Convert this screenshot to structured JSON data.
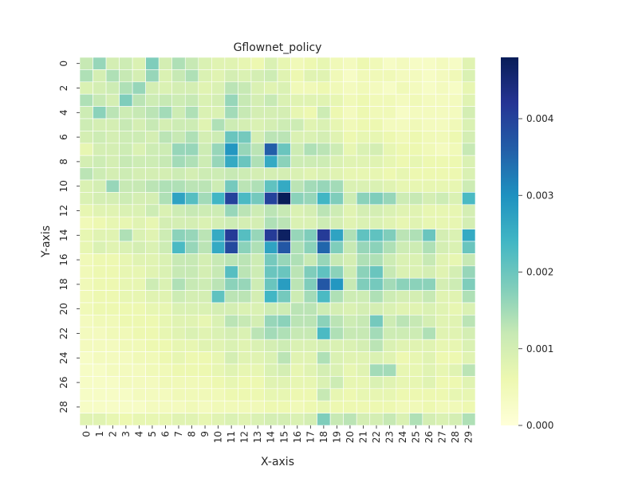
{
  "chart_data": {
    "type": "heatmap",
    "title": "Gflownet_policy",
    "xlabel": "X-axis",
    "ylabel": "Y-axis",
    "x_tick_labels": [
      "0",
      "1",
      "2",
      "3",
      "4",
      "5",
      "6",
      "7",
      "8",
      "9",
      "10",
      "11",
      "12",
      "13",
      "14",
      "15",
      "16",
      "17",
      "18",
      "19",
      "20",
      "21",
      "22",
      "23",
      "24",
      "25",
      "26",
      "27",
      "28",
      "29"
    ],
    "y_tick_labels": [
      "0",
      "2",
      "4",
      "6",
      "8",
      "10",
      "12",
      "14",
      "16",
      "18",
      "20",
      "22",
      "24",
      "26",
      "28"
    ],
    "colormap": "YlGnBu",
    "value_range": [
      0,
      0.0048
    ],
    "colorbar_ticks": [
      {
        "value": 0.0,
        "label": "0.000"
      },
      {
        "value": 0.001,
        "label": "0.001"
      },
      {
        "value": 0.002,
        "label": "0.002"
      },
      {
        "value": 0.003,
        "label": "0.003"
      },
      {
        "value": 0.004,
        "label": "0.004"
      }
    ],
    "grid": "white cell borders",
    "values": [
      [
        0.0012,
        0.0016,
        0.001,
        0.0011,
        0.0009,
        0.0018,
        0.001,
        0.0014,
        0.0012,
        0.0009,
        0.0008,
        0.0008,
        0.0007,
        0.0006,
        0.0009,
        0.0007,
        0.0005,
        0.0006,
        0.0007,
        0.0005,
        0.0004,
        0.0006,
        0.0005,
        0.0003,
        0.0004,
        0.0003,
        0.0003,
        0.0004,
        0.0003,
        0.0008
      ],
      [
        0.0014,
        0.001,
        0.0014,
        0.0012,
        0.001,
        0.0016,
        0.0009,
        0.0012,
        0.0014,
        0.0009,
        0.0008,
        0.001,
        0.0009,
        0.001,
        0.0011,
        0.0008,
        0.0006,
        0.0008,
        0.0008,
        0.0005,
        0.0003,
        0.0005,
        0.0005,
        0.0005,
        0.0004,
        0.0004,
        0.0003,
        0.0004,
        0.0005,
        0.0009
      ],
      [
        0.0009,
        0.001,
        0.0011,
        0.0014,
        0.0016,
        0.001,
        0.0009,
        0.001,
        0.001,
        0.0008,
        0.0009,
        0.0013,
        0.0012,
        0.0009,
        0.0008,
        0.0009,
        0.0005,
        0.0005,
        0.0006,
        0.0005,
        0.0004,
        0.0005,
        0.0004,
        0.0003,
        0.0005,
        0.0004,
        0.0003,
        0.0004,
        0.0003,
        0.0007
      ],
      [
        0.0014,
        0.0012,
        0.001,
        0.0018,
        0.0013,
        0.0011,
        0.0012,
        0.0011,
        0.0012,
        0.0009,
        0.001,
        0.0016,
        0.0012,
        0.001,
        0.0012,
        0.0009,
        0.0008,
        0.0008,
        0.0008,
        0.0007,
        0.0005,
        0.0006,
        0.0005,
        0.0005,
        0.0004,
        0.0005,
        0.0004,
        0.0004,
        0.0004,
        0.0008
      ],
      [
        0.0011,
        0.0017,
        0.0013,
        0.0011,
        0.0012,
        0.0013,
        0.0015,
        0.0011,
        0.0014,
        0.0009,
        0.0009,
        0.0015,
        0.0012,
        0.001,
        0.001,
        0.001,
        0.0007,
        0.0006,
        0.0011,
        0.0006,
        0.0004,
        0.0006,
        0.0005,
        0.0005,
        0.0003,
        0.0004,
        0.0004,
        0.0004,
        0.0004,
        0.001
      ],
      [
        0.0011,
        0.001,
        0.001,
        0.0012,
        0.001,
        0.0012,
        0.001,
        0.0011,
        0.0011,
        0.0008,
        0.0014,
        0.0011,
        0.001,
        0.0009,
        0.001,
        0.0011,
        0.0011,
        0.0008,
        0.0009,
        0.0007,
        0.0005,
        0.0006,
        0.0006,
        0.0004,
        0.0004,
        0.0005,
        0.0004,
        0.0004,
        0.0005,
        0.0009
      ],
      [
        0.001,
        0.0011,
        0.001,
        0.0011,
        0.0011,
        0.001,
        0.0013,
        0.0012,
        0.0014,
        0.001,
        0.0011,
        0.002,
        0.0019,
        0.001,
        0.0013,
        0.0013,
        0.0009,
        0.0009,
        0.001,
        0.0008,
        0.0006,
        0.0007,
        0.0007,
        0.0006,
        0.0005,
        0.0006,
        0.0005,
        0.0005,
        0.0006,
        0.001
      ],
      [
        0.0007,
        0.001,
        0.001,
        0.0011,
        0.0009,
        0.0011,
        0.0011,
        0.0016,
        0.0016,
        0.0011,
        0.0016,
        0.0029,
        0.0016,
        0.0013,
        0.0036,
        0.002,
        0.0011,
        0.0014,
        0.0013,
        0.0011,
        0.0007,
        0.0009,
        0.001,
        0.0007,
        0.0006,
        0.0006,
        0.0005,
        0.0004,
        0.0005,
        0.0012
      ],
      [
        0.001,
        0.0011,
        0.001,
        0.0012,
        0.0011,
        0.0011,
        0.0012,
        0.0015,
        0.0014,
        0.0011,
        0.0016,
        0.0026,
        0.002,
        0.0014,
        0.0026,
        0.0017,
        0.0011,
        0.0011,
        0.0011,
        0.0009,
        0.0008,
        0.0008,
        0.0008,
        0.0007,
        0.0006,
        0.0007,
        0.0006,
        0.0006,
        0.0006,
        0.0009
      ],
      [
        0.0013,
        0.0011,
        0.001,
        0.0011,
        0.001,
        0.001,
        0.001,
        0.0011,
        0.001,
        0.0011,
        0.0011,
        0.0012,
        0.0011,
        0.001,
        0.001,
        0.001,
        0.0009,
        0.0008,
        0.0009,
        0.0008,
        0.0007,
        0.0007,
        0.0007,
        0.0006,
        0.0007,
        0.0006,
        0.0006,
        0.0006,
        0.0006,
        0.0009
      ],
      [
        0.0009,
        0.001,
        0.0016,
        0.0012,
        0.0012,
        0.0013,
        0.0014,
        0.0014,
        0.0013,
        0.0013,
        0.0011,
        0.0019,
        0.0013,
        0.0014,
        0.0021,
        0.0026,
        0.0013,
        0.0015,
        0.0016,
        0.0015,
        0.0009,
        0.0009,
        0.0009,
        0.0008,
        0.0007,
        0.0007,
        0.0007,
        0.0007,
        0.0007,
        0.0011
      ],
      [
        0.0009,
        0.001,
        0.001,
        0.0011,
        0.001,
        0.001,
        0.0014,
        0.0027,
        0.0022,
        0.0015,
        0.0024,
        0.004,
        0.0023,
        0.0019,
        0.004,
        0.0048,
        0.0017,
        0.0016,
        0.0024,
        0.0018,
        0.0011,
        0.0017,
        0.0018,
        0.0016,
        0.0011,
        0.0012,
        0.001,
        0.0011,
        0.0009,
        0.0023
      ],
      [
        0.0007,
        0.0008,
        0.0008,
        0.0009,
        0.0009,
        0.0011,
        0.0009,
        0.0011,
        0.0012,
        0.0011,
        0.0011,
        0.0016,
        0.0013,
        0.0011,
        0.0013,
        0.0012,
        0.0009,
        0.001,
        0.0013,
        0.0011,
        0.0008,
        0.001,
        0.001,
        0.0009,
        0.0008,
        0.0008,
        0.0007,
        0.0007,
        0.0007,
        0.001
      ],
      [
        0.0005,
        0.0006,
        0.0007,
        0.0007,
        0.0008,
        0.0007,
        0.001,
        0.001,
        0.001,
        0.0009,
        0.001,
        0.0011,
        0.001,
        0.001,
        0.0014,
        0.0013,
        0.0009,
        0.0009,
        0.0011,
        0.001,
        0.0008,
        0.0009,
        0.0009,
        0.0008,
        0.0007,
        0.0008,
        0.0007,
        0.0007,
        0.0007,
        0.001
      ],
      [
        0.0007,
        0.0008,
        0.0008,
        0.0014,
        0.0009,
        0.0008,
        0.0011,
        0.0017,
        0.0016,
        0.0013,
        0.0026,
        0.0041,
        0.0022,
        0.0016,
        0.0041,
        0.0047,
        0.0016,
        0.0018,
        0.0041,
        0.0027,
        0.0014,
        0.0021,
        0.0021,
        0.0018,
        0.0013,
        0.0014,
        0.002,
        0.001,
        0.0009,
        0.0026
      ],
      [
        0.0007,
        0.0009,
        0.0008,
        0.0009,
        0.001,
        0.0009,
        0.0011,
        0.0023,
        0.0016,
        0.0013,
        0.0026,
        0.0039,
        0.0017,
        0.0014,
        0.0027,
        0.0037,
        0.0014,
        0.0017,
        0.0035,
        0.0018,
        0.0012,
        0.0016,
        0.0017,
        0.0014,
        0.0011,
        0.0011,
        0.0014,
        0.001,
        0.0009,
        0.002
      ],
      [
        0.0005,
        0.0006,
        0.0006,
        0.0007,
        0.0008,
        0.0008,
        0.0009,
        0.0012,
        0.0012,
        0.001,
        0.0012,
        0.0013,
        0.0013,
        0.0011,
        0.0019,
        0.0016,
        0.0014,
        0.0012,
        0.0016,
        0.0012,
        0.001,
        0.0014,
        0.0014,
        0.0011,
        0.0009,
        0.0009,
        0.0012,
        0.0008,
        0.0007,
        0.0012
      ],
      [
        0.0005,
        0.0006,
        0.0006,
        0.0007,
        0.0007,
        0.0008,
        0.0009,
        0.0012,
        0.0012,
        0.001,
        0.0012,
        0.0022,
        0.0013,
        0.0011,
        0.002,
        0.002,
        0.0013,
        0.0018,
        0.0021,
        0.0017,
        0.0011,
        0.0017,
        0.002,
        0.0012,
        0.0009,
        0.0009,
        0.001,
        0.0008,
        0.001,
        0.0016
      ],
      [
        0.0005,
        0.0006,
        0.0006,
        0.0007,
        0.0007,
        0.0011,
        0.0009,
        0.0014,
        0.0012,
        0.0011,
        0.0013,
        0.0017,
        0.0016,
        0.0011,
        0.002,
        0.0028,
        0.0013,
        0.0018,
        0.0037,
        0.0029,
        0.0012,
        0.0018,
        0.0019,
        0.0015,
        0.0017,
        0.0017,
        0.0017,
        0.001,
        0.0011,
        0.0018
      ],
      [
        0.0005,
        0.0006,
        0.0006,
        0.0007,
        0.0007,
        0.0008,
        0.0008,
        0.0011,
        0.001,
        0.001,
        0.0021,
        0.0013,
        0.0013,
        0.001,
        0.0024,
        0.0019,
        0.0011,
        0.0015,
        0.0023,
        0.0014,
        0.0011,
        0.0011,
        0.0014,
        0.0011,
        0.001,
        0.001,
        0.0012,
        0.0008,
        0.0008,
        0.0014
      ],
      [
        0.0005,
        0.0006,
        0.0006,
        0.0006,
        0.0006,
        0.0007,
        0.0007,
        0.0009,
        0.0009,
        0.0009,
        0.001,
        0.001,
        0.0009,
        0.0009,
        0.0011,
        0.0011,
        0.0013,
        0.0013,
        0.0011,
        0.001,
        0.0009,
        0.001,
        0.001,
        0.0009,
        0.0008,
        0.0008,
        0.0009,
        0.0008,
        0.0007,
        0.0009
      ],
      [
        0.0004,
        0.0005,
        0.0005,
        0.0006,
        0.0006,
        0.0006,
        0.0007,
        0.0008,
        0.0008,
        0.0007,
        0.0009,
        0.0013,
        0.0012,
        0.001,
        0.0016,
        0.0017,
        0.0013,
        0.0013,
        0.0017,
        0.0013,
        0.0011,
        0.0012,
        0.0019,
        0.0011,
        0.0013,
        0.0012,
        0.001,
        0.0008,
        0.0008,
        0.0013
      ],
      [
        0.0004,
        0.0004,
        0.0005,
        0.0005,
        0.0006,
        0.0006,
        0.0007,
        0.0008,
        0.0009,
        0.0008,
        0.0009,
        0.001,
        0.0009,
        0.0013,
        0.0015,
        0.0014,
        0.0012,
        0.0012,
        0.0023,
        0.0014,
        0.0012,
        0.0012,
        0.0015,
        0.0011,
        0.0011,
        0.0011,
        0.0014,
        0.0008,
        0.0008,
        0.001
      ],
      [
        0.0004,
        0.0004,
        0.0004,
        0.0005,
        0.0005,
        0.0006,
        0.0006,
        0.0007,
        0.0007,
        0.0008,
        0.0008,
        0.0009,
        0.0008,
        0.0009,
        0.001,
        0.0011,
        0.0009,
        0.0009,
        0.001,
        0.0009,
        0.0009,
        0.001,
        0.0013,
        0.0009,
        0.0008,
        0.0008,
        0.0008,
        0.0007,
        0.0007,
        0.0009
      ],
      [
        0.0003,
        0.0004,
        0.0004,
        0.0004,
        0.0005,
        0.0005,
        0.0006,
        0.0007,
        0.0006,
        0.0006,
        0.0007,
        0.001,
        0.0008,
        0.0008,
        0.0009,
        0.0013,
        0.0008,
        0.0008,
        0.0014,
        0.0009,
        0.0008,
        0.0008,
        0.0009,
        0.0008,
        0.0006,
        0.0007,
        0.0008,
        0.0006,
        0.0006,
        0.0008
      ],
      [
        0.0003,
        0.0003,
        0.0004,
        0.0004,
        0.0004,
        0.0005,
        0.0005,
        0.0006,
        0.0006,
        0.0006,
        0.0007,
        0.0008,
        0.0007,
        0.0007,
        0.0009,
        0.001,
        0.0007,
        0.0008,
        0.001,
        0.0009,
        0.0007,
        0.0008,
        0.0015,
        0.0015,
        0.0007,
        0.0007,
        0.0008,
        0.0007,
        0.0008,
        0.0013
      ],
      [
        0.0003,
        0.0003,
        0.0003,
        0.0004,
        0.0004,
        0.0004,
        0.0005,
        0.0005,
        0.0005,
        0.0005,
        0.0006,
        0.0007,
        0.0006,
        0.0006,
        0.0008,
        0.0008,
        0.0007,
        0.0007,
        0.0009,
        0.0011,
        0.0007,
        0.0007,
        0.0009,
        0.0008,
        0.0007,
        0.0007,
        0.0008,
        0.0006,
        0.0006,
        0.0008
      ],
      [
        0.0003,
        0.0003,
        0.0003,
        0.0003,
        0.0004,
        0.0004,
        0.0004,
        0.0005,
        0.0005,
        0.0005,
        0.0005,
        0.0006,
        0.0006,
        0.0006,
        0.0007,
        0.0007,
        0.0006,
        0.0006,
        0.0012,
        0.0007,
        0.0006,
        0.0007,
        0.0007,
        0.0007,
        0.0006,
        0.0006,
        0.0006,
        0.0006,
        0.0007,
        0.0007
      ],
      [
        0.0003,
        0.0003,
        0.0003,
        0.0003,
        0.0003,
        0.0004,
        0.0004,
        0.0004,
        0.0005,
        0.0004,
        0.0005,
        0.0005,
        0.0005,
        0.0005,
        0.0006,
        0.0006,
        0.0005,
        0.0006,
        0.0007,
        0.0006,
        0.0006,
        0.0006,
        0.0006,
        0.0006,
        0.0005,
        0.0005,
        0.0006,
        0.0005,
        0.0005,
        0.0006
      ],
      [
        0.0008,
        0.0008,
        0.0007,
        0.0006,
        0.0007,
        0.0007,
        0.0007,
        0.0008,
        0.0008,
        0.0007,
        0.0008,
        0.0009,
        0.0008,
        0.0009,
        0.001,
        0.001,
        0.0009,
        0.001,
        0.0018,
        0.0012,
        0.0013,
        0.001,
        0.001,
        0.0012,
        0.0009,
        0.0014,
        0.001,
        0.0009,
        0.001,
        0.0014
      ]
    ]
  }
}
